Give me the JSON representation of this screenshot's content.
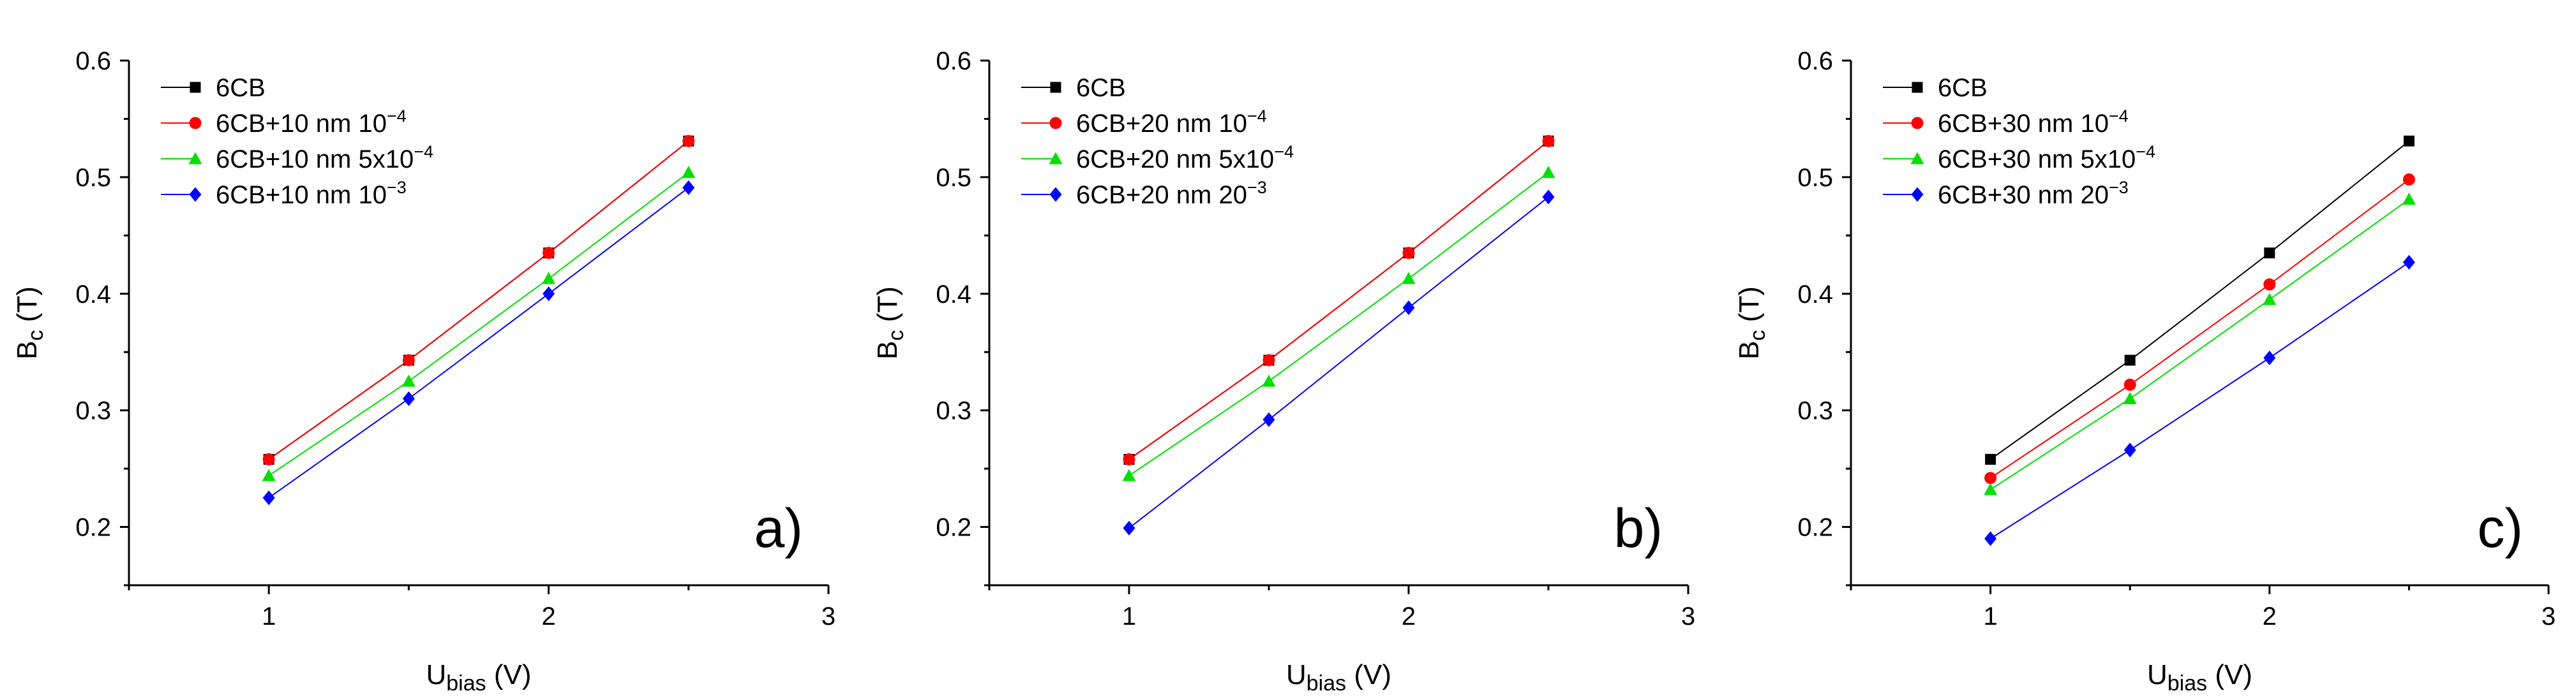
{
  "figure": {
    "panel_count": 3
  },
  "chart_data": [
    {
      "type": "line",
      "panel_label": "a)",
      "xlabel": {
        "main": "U",
        "sub": "bias",
        "unit": " (V)"
      },
      "ylabel": {
        "main": "B",
        "sub": "c",
        "unit": " (T)"
      },
      "xlim": [
        0.5,
        3
      ],
      "ylim": [
        0.15,
        0.6
      ],
      "xticks": [
        1,
        2,
        3
      ],
      "yticks": [
        0.2,
        0.3,
        0.4,
        0.5,
        0.6
      ],
      "ytick_labels": [
        "0.2",
        "0.3",
        "0.4",
        "0.5",
        "0.6"
      ],
      "legend_position": "top-left",
      "x": [
        1,
        1.5,
        2,
        2.5
      ],
      "series": [
        {
          "name": "6CB",
          "label": "6CB",
          "sup": "",
          "color": "#000000",
          "marker": "square",
          "values": [
            0.258,
            0.343,
            0.435,
            0.531
          ]
        },
        {
          "name": "6CB+10 nm 10^-4",
          "label": "6CB+10 nm 10",
          "sup": "−4",
          "color": "#ff0000",
          "marker": "circle",
          "values": [
            0.258,
            0.343,
            0.435,
            0.531
          ]
        },
        {
          "name": "6CB+10 nm 5x10^-4",
          "label": "6CB+10 nm 5x10",
          "sup": "−4",
          "color": "#00e000",
          "marker": "triangle",
          "values": [
            0.244,
            0.325,
            0.413,
            0.504
          ]
        },
        {
          "name": "6CB+10 nm 10^-3",
          "label": "6CB+10 nm 10",
          "sup": "−3",
          "color": "#0000ff",
          "marker": "diamond",
          "values": [
            0.225,
            0.31,
            0.4,
            0.491
          ]
        }
      ]
    },
    {
      "type": "line",
      "panel_label": "b)",
      "xlabel": {
        "main": "U",
        "sub": "bias",
        "unit": " (V)"
      },
      "ylabel": {
        "main": "B",
        "sub": "c",
        "unit": " (T)"
      },
      "xlim": [
        0.5,
        3
      ],
      "ylim": [
        0.15,
        0.6
      ],
      "xticks": [
        1,
        2,
        3
      ],
      "yticks": [
        0.2,
        0.3,
        0.4,
        0.5,
        0.6
      ],
      "ytick_labels": [
        "0.2",
        "0.3",
        "0.4",
        "0.5",
        "0.6"
      ],
      "legend_position": "top-left",
      "x": [
        1,
        1.5,
        2,
        2.5
      ],
      "series": [
        {
          "name": "6CB",
          "label": "6CB",
          "sup": "",
          "color": "#000000",
          "marker": "square",
          "values": [
            0.258,
            0.343,
            0.435,
            0.531
          ]
        },
        {
          "name": "6CB+20 nm 10^-4",
          "label": "6CB+20 nm 10",
          "sup": "−4",
          "color": "#ff0000",
          "marker": "circle",
          "values": [
            0.258,
            0.343,
            0.435,
            0.531
          ]
        },
        {
          "name": "6CB+20 nm 5x10^-4",
          "label": "6CB+20 nm 5x10",
          "sup": "−4",
          "color": "#00e000",
          "marker": "triangle",
          "values": [
            0.244,
            0.325,
            0.413,
            0.504
          ]
        },
        {
          "name": "6CB+20 nm 20^-3",
          "label": "6CB+20 nm 20",
          "sup": "−3",
          "color": "#0000ff",
          "marker": "diamond",
          "values": [
            0.199,
            0.292,
            0.388,
            0.483
          ]
        }
      ]
    },
    {
      "type": "line",
      "panel_label": "c)",
      "xlabel": {
        "main": "U",
        "sub": "bias",
        "unit": " (V)"
      },
      "ylabel": {
        "main": "B",
        "sub": "c",
        "unit": " (T)"
      },
      "xlim": [
        0.5,
        3
      ],
      "ylim": [
        0.15,
        0.6
      ],
      "xticks": [
        1,
        2,
        3
      ],
      "yticks": [
        0.2,
        0.3,
        0.4,
        0.5,
        0.6
      ],
      "ytick_labels": [
        "0.2",
        "0.3",
        "0.4",
        "0.5",
        "0.6"
      ],
      "legend_position": "top-left",
      "x": [
        1,
        1.5,
        2,
        2.5
      ],
      "series": [
        {
          "name": "6CB",
          "label": "6CB",
          "sup": "",
          "color": "#000000",
          "marker": "square",
          "values": [
            0.258,
            0.343,
            0.435,
            0.531
          ]
        },
        {
          "name": "6CB+30 nm 10^-4",
          "label": "6CB+30 nm 10",
          "sup": "−4",
          "color": "#ff0000",
          "marker": "circle",
          "values": [
            0.242,
            0.322,
            0.408,
            0.498
          ]
        },
        {
          "name": "6CB+30 nm 5x10^-4",
          "label": "6CB+30 nm 5x10",
          "sup": "−4",
          "color": "#00e000",
          "marker": "triangle",
          "values": [
            0.232,
            0.31,
            0.395,
            0.481
          ]
        },
        {
          "name": "6CB+30 nm 20^-3",
          "label": "6CB+30 nm 20",
          "sup": "−3",
          "color": "#0000ff",
          "marker": "diamond",
          "values": [
            0.19,
            0.266,
            0.345,
            0.427
          ]
        }
      ]
    }
  ]
}
